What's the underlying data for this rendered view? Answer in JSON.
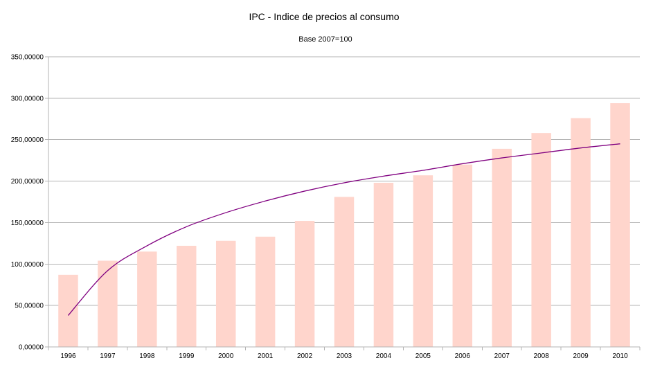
{
  "chart_data": {
    "type": "bar",
    "title": "IPC - Indice de precios al consumo",
    "subtitle": "Base 2007=100",
    "xlabel": "",
    "ylabel": "",
    "ylim": [
      0,
      350
    ],
    "y_ticks": [
      0,
      50,
      100,
      150,
      200,
      250,
      300,
      350
    ],
    "y_tick_labels": [
      "0,00000",
      "50,00000",
      "100,00000",
      "150,00000",
      "200,00000",
      "250,00000",
      "300,00000",
      "350,00000"
    ],
    "grid": "horizontal",
    "categories": [
      "1996",
      "1997",
      "1998",
      "1999",
      "2000",
      "2001",
      "2002",
      "2003",
      "2004",
      "2005",
      "2006",
      "2007",
      "2008",
      "2009",
      "2010"
    ],
    "series": [
      {
        "type": "bar",
        "values": [
          87,
          104,
          115,
          122,
          128,
          133,
          152,
          181,
          198,
          207,
          220,
          239,
          258,
          276,
          294
        ]
      },
      {
        "type": "line",
        "trendline": "logarithmic",
        "values": [
          38,
          92,
          122,
          145,
          162,
          176,
          188,
          198,
          206,
          213,
          221,
          228,
          234,
          240,
          245
        ]
      }
    ],
    "colors": {
      "bar": "#ffd5cc",
      "trendline": "#800080",
      "grid": "#b3b3b3",
      "axis": "#b3b3b3"
    }
  }
}
